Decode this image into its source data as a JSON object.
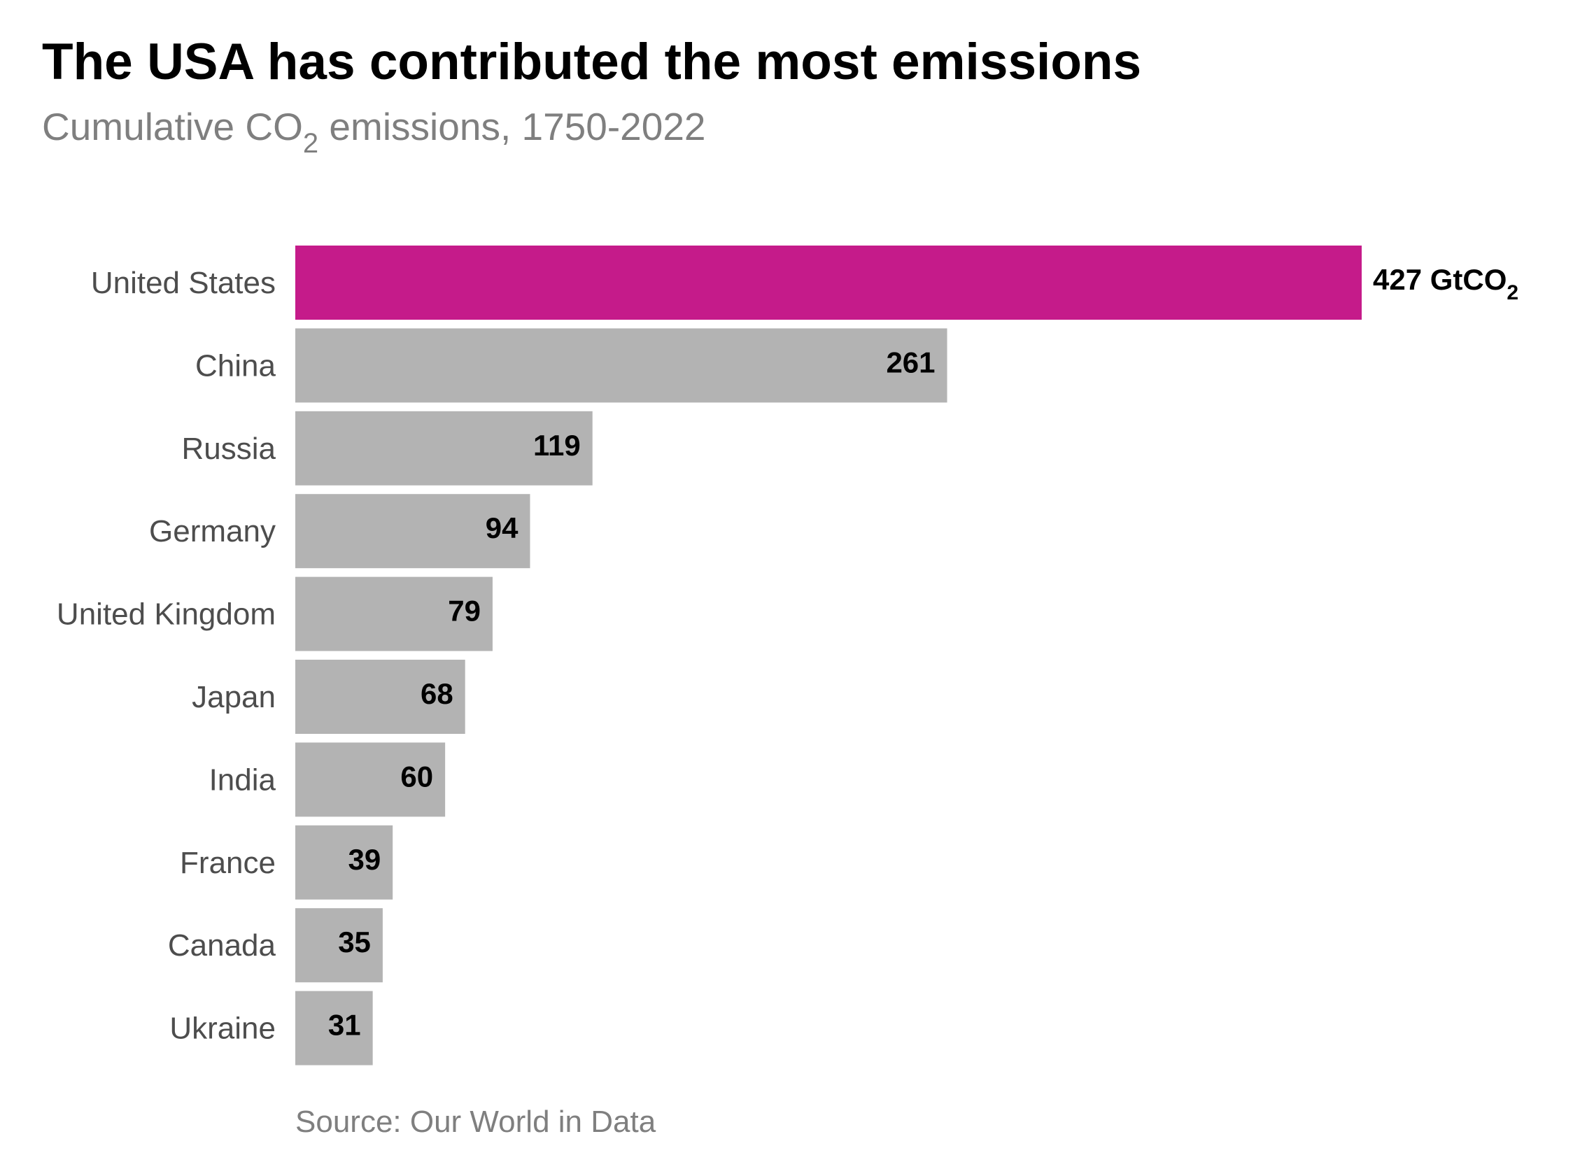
{
  "chart_data": {
    "type": "bar",
    "orientation": "horizontal",
    "title": "The USA has contributed the most emissions",
    "subtitle": {
      "prefix": "Cumulative CO",
      "subscript": "2",
      "suffix": " emissions, 1750-2022"
    },
    "categories": [
      "United States",
      "China",
      "Russia",
      "Germany",
      "United Kingdom",
      "Japan",
      "India",
      "France",
      "Canada",
      "Ukraine"
    ],
    "values": [
      427,
      261,
      119,
      94,
      79,
      68,
      60,
      39,
      35,
      31
    ],
    "value_labels": [
      "427 GtCO",
      "261",
      "119",
      "94",
      "79",
      "68",
      "60",
      "39",
      "35",
      "31"
    ],
    "first_value_label_subscript": "2",
    "unit": "GtCO2",
    "highlight_category": "United States",
    "colors": {
      "highlight": "#c51b8a",
      "default": "#b3b3b3"
    },
    "xlim": [
      0,
      427
    ],
    "grid": false,
    "legend": "none",
    "source": "Source: Our World in Data"
  }
}
